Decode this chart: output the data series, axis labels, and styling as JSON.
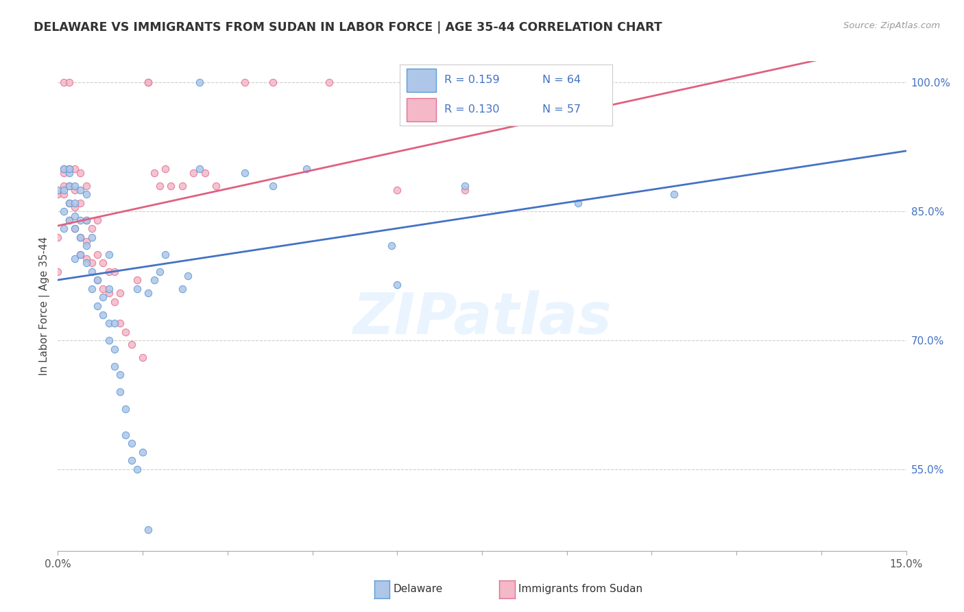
{
  "title": "DELAWARE VS IMMIGRANTS FROM SUDAN IN LABOR FORCE | AGE 35-44 CORRELATION CHART",
  "source": "Source: ZipAtlas.com",
  "ylabel": "In Labor Force | Age 35-44",
  "right_yticks_labels": [
    "55.0%",
    "70.0%",
    "85.0%",
    "100.0%"
  ],
  "right_yticks_vals": [
    0.55,
    0.7,
    0.85,
    1.0
  ],
  "xlim": [
    0.0,
    0.15
  ],
  "ylim": [
    0.455,
    1.025
  ],
  "legend_line1": "R = 0.159   N = 64",
  "legend_line2": "R = 0.130   N = 57",
  "color_delaware_fill": "#aec6e8",
  "color_delaware_edge": "#5b9bd5",
  "color_sudan_fill": "#f4b8c8",
  "color_sudan_edge": "#e07090",
  "color_line_delaware": "#4472c4",
  "color_line_sudan": "#e06080",
  "color_title": "#333333",
  "color_source": "#999999",
  "color_right_axis": "#4472c4",
  "color_grid": "#cccccc",
  "marker_size": 55,
  "xticks_vals": [
    0.0,
    0.015,
    0.03,
    0.045,
    0.06,
    0.075,
    0.09,
    0.105,
    0.12,
    0.135,
    0.15
  ],
  "xticks_show": [
    0.0,
    0.15
  ],
  "delaware_x": [
    0.0,
    0.001,
    0.001,
    0.001,
    0.001,
    0.002,
    0.002,
    0.002,
    0.002,
    0.002,
    0.003,
    0.003,
    0.003,
    0.003,
    0.003,
    0.004,
    0.004,
    0.004,
    0.004,
    0.005,
    0.005,
    0.005,
    0.005,
    0.006,
    0.006,
    0.006,
    0.007,
    0.007,
    0.008,
    0.008,
    0.009,
    0.009,
    0.009,
    0.009,
    0.01,
    0.01,
    0.01,
    0.011,
    0.011,
    0.012,
    0.012,
    0.013,
    0.013,
    0.014,
    0.014,
    0.015,
    0.016,
    0.016,
    0.017,
    0.018,
    0.019,
    0.022,
    0.023,
    0.025,
    0.025,
    0.033,
    0.038,
    0.044,
    0.059,
    0.06,
    0.072,
    0.092,
    0.097,
    0.109
  ],
  "delaware_y": [
    0.875,
    0.875,
    0.83,
    0.85,
    0.9,
    0.84,
    0.86,
    0.88,
    0.895,
    0.9,
    0.795,
    0.83,
    0.845,
    0.86,
    0.88,
    0.8,
    0.82,
    0.84,
    0.875,
    0.79,
    0.81,
    0.84,
    0.87,
    0.76,
    0.78,
    0.82,
    0.74,
    0.77,
    0.73,
    0.75,
    0.7,
    0.72,
    0.76,
    0.8,
    0.67,
    0.69,
    0.72,
    0.64,
    0.66,
    0.59,
    0.62,
    0.56,
    0.58,
    0.76,
    0.55,
    0.57,
    0.48,
    0.755,
    0.77,
    0.78,
    0.8,
    0.76,
    0.775,
    0.9,
    1.0,
    0.895,
    0.88,
    0.9,
    0.81,
    0.765,
    0.88,
    0.86,
    1.0,
    0.87
  ],
  "sudan_x": [
    0.0,
    0.0,
    0.0,
    0.001,
    0.001,
    0.001,
    0.001,
    0.001,
    0.002,
    0.002,
    0.002,
    0.002,
    0.002,
    0.003,
    0.003,
    0.003,
    0.003,
    0.004,
    0.004,
    0.004,
    0.004,
    0.005,
    0.005,
    0.005,
    0.005,
    0.006,
    0.006,
    0.007,
    0.007,
    0.007,
    0.008,
    0.008,
    0.009,
    0.009,
    0.01,
    0.01,
    0.011,
    0.011,
    0.012,
    0.013,
    0.014,
    0.015,
    0.016,
    0.016,
    0.017,
    0.018,
    0.019,
    0.02,
    0.022,
    0.024,
    0.026,
    0.028,
    0.033,
    0.038,
    0.048,
    0.06,
    0.072
  ],
  "sudan_y": [
    0.78,
    0.82,
    0.87,
    0.87,
    0.88,
    0.895,
    0.9,
    1.0,
    0.84,
    0.86,
    0.88,
    0.9,
    1.0,
    0.83,
    0.855,
    0.875,
    0.9,
    0.8,
    0.82,
    0.86,
    0.895,
    0.795,
    0.815,
    0.84,
    0.88,
    0.79,
    0.83,
    0.77,
    0.8,
    0.84,
    0.76,
    0.79,
    0.755,
    0.78,
    0.745,
    0.78,
    0.72,
    0.755,
    0.71,
    0.695,
    0.77,
    0.68,
    1.0,
    1.0,
    0.895,
    0.88,
    0.9,
    0.88,
    0.88,
    0.895,
    0.895,
    0.88,
    1.0,
    1.0,
    1.0,
    0.875,
    0.875
  ]
}
